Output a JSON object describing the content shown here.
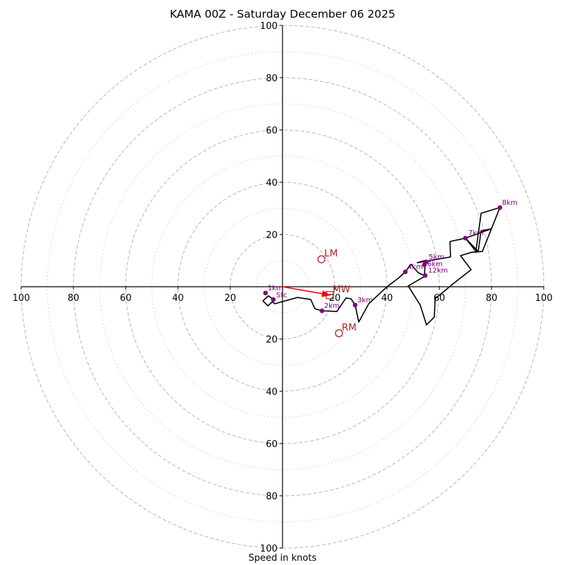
{
  "chart_data": {
    "type": "hodograph",
    "title": "KAMA 00Z - Saturday December 06 2025",
    "xlabel": "Speed in knots",
    "ylabel": "",
    "range": [
      -100,
      100
    ],
    "ring_major": [
      20,
      40,
      60,
      80,
      100
    ],
    "ring_minor": [
      10,
      30,
      50,
      70,
      90
    ],
    "x_ticks": [
      100,
      80,
      60,
      40,
      20,
      20,
      40,
      60,
      80,
      100
    ],
    "x_tick_values": [
      -100,
      -80,
      -60,
      -40,
      -20,
      20,
      40,
      60,
      80,
      100
    ],
    "y_ticks": [
      100,
      80,
      60,
      40,
      20,
      20,
      40,
      60,
      80,
      100
    ],
    "y_tick_values": [
      100,
      80,
      60,
      40,
      20,
      -20,
      -40,
      -60,
      -80,
      -100
    ],
    "profile": {
      "name": "wind profile",
      "color": "#000000",
      "points": [
        [
          -3.5,
          -4.9
        ],
        [
          -5.4,
          -3.5
        ],
        [
          -7.5,
          -5.4
        ],
        [
          -5.6,
          -7.3
        ],
        [
          -3.8,
          -5.7
        ],
        [
          -3.0,
          -6.5
        ],
        [
          5.7,
          -4.1
        ],
        [
          10.8,
          -4.9
        ],
        [
          12.4,
          -8.4
        ],
        [
          15.1,
          -9.2
        ],
        [
          20.8,
          -9.5
        ],
        [
          24.3,
          -4.3
        ],
        [
          26.2,
          -4.6
        ],
        [
          27.8,
          -7.0
        ],
        [
          29.2,
          -13.5
        ],
        [
          33.0,
          -6.5
        ],
        [
          40.0,
          0.0
        ],
        [
          44.6,
          3.5
        ],
        [
          47.0,
          5.7
        ],
        [
          49.2,
          8.6
        ],
        [
          51.9,
          5.4
        ],
        [
          54.3,
          4.3
        ],
        [
          54.6,
          8.9
        ],
        [
          54.3,
          10.0
        ],
        [
          51.6,
          9.2
        ],
        [
          64.3,
          11.4
        ],
        [
          64.1,
          17.3
        ],
        [
          70.0,
          18.6
        ],
        [
          80.0,
          22.2
        ],
        [
          76.0,
          21.4
        ],
        [
          74.9,
          13.5
        ],
        [
          70.0,
          18.6
        ],
        [
          74.3,
          13.2
        ],
        [
          74.1,
          14.3
        ],
        [
          76.0,
          28.1
        ],
        [
          83.2,
          30.3
        ],
        [
          76.5,
          13.5
        ],
        [
          72.4,
          13.2
        ],
        [
          68.1,
          11.9
        ],
        [
          72.2,
          6.5
        ],
        [
          64.9,
          0.8
        ],
        [
          58.4,
          -4.6
        ],
        [
          58.1,
          -11.6
        ],
        [
          55.1,
          -14.6
        ],
        [
          52.7,
          -7.0
        ],
        [
          48.1,
          0.3
        ],
        [
          54.6,
          4.1
        ]
      ]
    },
    "height_markers": [
      {
        "label": "Sfc",
        "u": -3.5,
        "v": -4.9
      },
      {
        "label": "1km",
        "u": -6.5,
        "v": -2.4
      },
      {
        "label": "2km",
        "u": 15.1,
        "v": -9.2
      },
      {
        "label": "3km",
        "u": 27.8,
        "v": -7.0
      },
      {
        "label": "4km",
        "u": 47.0,
        "v": 5.7
      },
      {
        "label": "5km",
        "u": 54.9,
        "v": 9.5
      },
      {
        "label": "6km",
        "u": 54.3,
        "v": 8.4
      },
      {
        "label": "7km",
        "u": 70.0,
        "v": 18.6
      },
      {
        "label": "8km",
        "u": 83.2,
        "v": 30.3
      },
      {
        "label": "12km",
        "u": 54.6,
        "v": 4.3
      }
    ],
    "motion_markers": [
      {
        "label": "LM",
        "u": 14.9,
        "v": 10.5,
        "marker": "circle"
      },
      {
        "label": "RM",
        "u": 21.6,
        "v": -17.8,
        "marker": "circle"
      },
      {
        "label": "MW",
        "u": 18.1,
        "v": -3.2,
        "marker": "square"
      }
    ],
    "mean_wind_vector": {
      "from": [
        0,
        0
      ],
      "to": [
        18.1,
        -3.2
      ],
      "color": "#ff0000"
    },
    "colors": {
      "profile": "#000000",
      "height_markers": "#800080",
      "storm_motion": "#b22222",
      "ring_major": "#bbbbbb",
      "ring_minor": "#cccccc"
    }
  }
}
